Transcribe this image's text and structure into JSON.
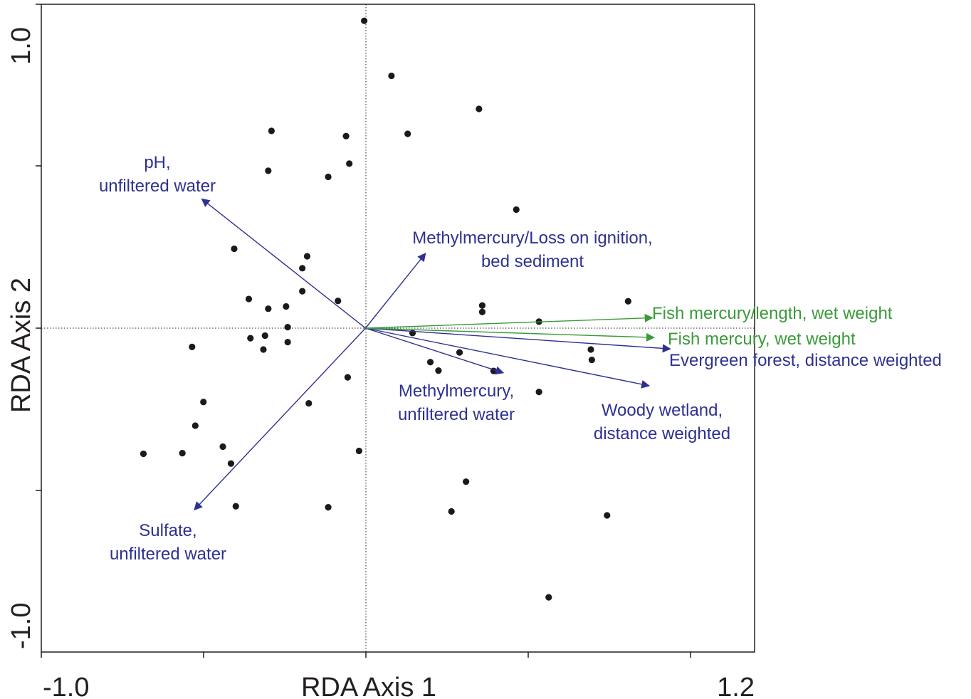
{
  "chart_data": {
    "type": "scatter",
    "xlabel": "RDA Axis 1",
    "ylabel": "RDA Axis 2",
    "xlim": [
      -1.0,
      1.2
    ],
    "ylim": [
      -1.0,
      1.0
    ],
    "x_tick_labels": [
      "-1.0",
      "1.2"
    ],
    "y_tick_labels": [
      "1.0",
      "-1.0"
    ],
    "grid": false,
    "zero_lines": true,
    "colors": {
      "points": "#1a1a1a",
      "explanatory": "#2e3192",
      "response": "#3a9a3a",
      "frame": "#231f20"
    },
    "points": [
      [
        -0.004,
        0.949
      ],
      [
        0.08,
        0.779
      ],
      [
        0.35,
        0.677
      ],
      [
        0.13,
        0.6
      ],
      [
        0.465,
        0.366
      ],
      [
        -0.29,
        0.609
      ],
      [
        -0.3,
        0.486
      ],
      [
        -0.06,
        0.593
      ],
      [
        -0.05,
        0.508
      ],
      [
        -0.115,
        0.467
      ],
      [
        -0.405,
        0.245
      ],
      [
        -0.18,
        0.222
      ],
      [
        -0.195,
        0.185
      ],
      [
        -0.195,
        0.114
      ],
      [
        -0.36,
        0.09
      ],
      [
        -0.3,
        0.06
      ],
      [
        -0.085,
        0.084
      ],
      [
        -0.24,
        0.003
      ],
      [
        -0.245,
        0.067
      ],
      [
        -0.535,
        -0.058
      ],
      [
        -0.355,
        -0.031
      ],
      [
        -0.31,
        -0.023
      ],
      [
        -0.315,
        -0.066
      ],
      [
        -0.24,
        -0.043
      ],
      [
        0.36,
        0.07
      ],
      [
        0.36,
        0.05
      ],
      [
        0.535,
        0.02
      ],
      [
        0.81,
        0.083
      ],
      [
        0.145,
        -0.015
      ],
      [
        0.29,
        -0.075
      ],
      [
        0.2,
        -0.105
      ],
      [
        0.225,
        -0.131
      ],
      [
        0.395,
        -0.132
      ],
      [
        0.535,
        -0.197
      ],
      [
        -0.175,
        -0.232
      ],
      [
        -0.055,
        -0.152
      ],
      [
        -0.5,
        -0.228
      ],
      [
        -0.525,
        -0.301
      ],
      [
        -0.44,
        -0.366
      ],
      [
        -0.685,
        -0.388
      ],
      [
        -0.565,
        -0.386
      ],
      [
        -0.415,
        -0.418
      ],
      [
        -0.02,
        -0.379
      ],
      [
        -0.4,
        -0.55
      ],
      [
        -0.115,
        -0.553
      ],
      [
        0.31,
        -0.474
      ],
      [
        0.265,
        -0.566
      ],
      [
        0.695,
        -0.066
      ],
      [
        0.698,
        -0.098
      ],
      [
        0.745,
        -0.578
      ],
      [
        0.565,
        -0.831
      ]
    ],
    "vectors": [
      {
        "name": "pH, unfiltered water",
        "group": "explanatory",
        "x": -0.505,
        "y": 0.399
      },
      {
        "name": "Sulfate, unfiltered water",
        "group": "explanatory",
        "x": -0.528,
        "y": -0.561
      },
      {
        "name": "Methylmercury/Loss on ignition, bed sediment",
        "group": "explanatory",
        "x": 0.185,
        "y": 0.231
      },
      {
        "name": "Methylmercury, unfiltered water",
        "group": "explanatory",
        "x": 0.425,
        "y": -0.138
      },
      {
        "name": "Woody wetland, distance weighted",
        "group": "explanatory",
        "x": 0.875,
        "y": -0.178
      },
      {
        "name": "Evergreen forest, distance weighted",
        "group": "explanatory",
        "x": 0.94,
        "y": -0.064
      },
      {
        "name": "Fish mercury, wet weight",
        "group": "response",
        "x": 0.89,
        "y": -0.029
      },
      {
        "name": "Fish mercury/length, wet weight",
        "group": "response",
        "x": 0.885,
        "y": 0.032
      }
    ],
    "vector_labels": [
      {
        "lines": [
          "pH,",
          "unfiltered water"
        ],
        "group": "explanatory"
      },
      {
        "lines": [
          "Sulfate,",
          "unfiltered water"
        ],
        "group": "explanatory"
      },
      {
        "lines": [
          "Methylmercury/Loss on ignition,",
          "bed sediment"
        ],
        "group": "explanatory"
      },
      {
        "lines": [
          "Methylmercury,",
          "unfiltered water"
        ],
        "group": "explanatory"
      },
      {
        "lines": [
          "Woody wetland,",
          "distance weighted"
        ],
        "group": "explanatory"
      },
      {
        "lines": [
          "Evergreen forest, distance weighted"
        ],
        "group": "explanatory"
      },
      {
        "lines": [
          "Fish mercury, wet weight"
        ],
        "group": "response"
      },
      {
        "lines": [
          "Fish mercury/length, wet weight"
        ],
        "group": "response"
      }
    ]
  }
}
